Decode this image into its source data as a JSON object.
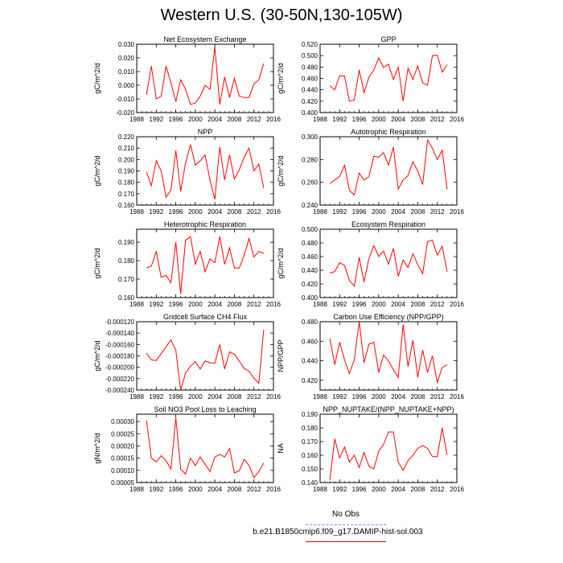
{
  "title": "Western U.S. (30-50N,130-105W)",
  "legend": {
    "obs_label": "No Obs",
    "obs_color": "#8080ff",
    "case_label": "b.e21.B1850cmip6.f09_g17.DAMIP-hist-sol.003",
    "case_color": "#ff0000"
  },
  "chart_data": [
    {
      "type": "line",
      "title": "Net Ecosystem Exchange",
      "ylabel": "gC/m^2/d",
      "xlim": [
        1988,
        2016
      ],
      "xticks": [
        "1988",
        "1992",
        "1996",
        "2000",
        "2004",
        "2008",
        "2012",
        "2016"
      ],
      "ylim": [
        -0.02,
        0.03
      ],
      "yticks": [
        "-0.020",
        "-0.010",
        "0.000",
        "0.010",
        "0.020",
        "0.030"
      ],
      "series": [
        {
          "x": [
            1990,
            1991,
            1992,
            1993,
            1994,
            1995,
            1996,
            1997,
            1998,
            1999,
            2000,
            2001,
            2002,
            2003,
            2004,
            2005,
            2006,
            2007,
            2008,
            2009,
            2010,
            2011,
            2012,
            2013,
            2014
          ],
          "values": [
            -0.007,
            0.014,
            -0.01,
            -0.008,
            0.014,
            0.002,
            -0.012,
            0.004,
            -0.003,
            -0.014,
            -0.013,
            -0.008,
            0.0,
            -0.003,
            0.028,
            -0.014,
            0.006,
            -0.009,
            0.005,
            -0.008,
            -0.009,
            -0.009,
            0.001,
            0.004,
            0.016
          ]
        }
      ]
    },
    {
      "type": "line",
      "title": "GPP",
      "ylabel": "gC/m^2/d",
      "xlim": [
        1988,
        2016
      ],
      "xticks": [
        "1988",
        "1992",
        "1996",
        "2000",
        "2004",
        "2008",
        "2012",
        "2016"
      ],
      "ylim": [
        0.4,
        0.52
      ],
      "yticks": [
        "0.400",
        "0.420",
        "0.440",
        "0.460",
        "0.480",
        "0.500",
        "0.520"
      ],
      "series": [
        {
          "x": [
            1990,
            1991,
            1992,
            1993,
            1994,
            1995,
            1996,
            1997,
            1998,
            1999,
            2000,
            2001,
            2002,
            2003,
            2004,
            2005,
            2006,
            2007,
            2008,
            2009,
            2010,
            2011,
            2012,
            2013,
            2014
          ],
          "values": [
            0.447,
            0.44,
            0.465,
            0.464,
            0.42,
            0.422,
            0.475,
            0.435,
            0.462,
            0.475,
            0.496,
            0.479,
            0.485,
            0.458,
            0.48,
            0.42,
            0.478,
            0.458,
            0.482,
            0.452,
            0.448,
            0.5,
            0.501,
            0.471,
            0.484
          ]
        }
      ]
    },
    {
      "type": "line",
      "title": "NPP",
      "ylabel": "gC/m^2/d",
      "xlim": [
        1988,
        2016
      ],
      "xticks": [
        "1988",
        "1992",
        "1996",
        "2000",
        "2004",
        "2008",
        "2012",
        "2016"
      ],
      "ylim": [
        0.16,
        0.22
      ],
      "yticks": [
        "0.160",
        "0.170",
        "0.180",
        "0.190",
        "0.200",
        "0.210",
        "0.220"
      ],
      "series": [
        {
          "x": [
            1990,
            1991,
            1992,
            1993,
            1994,
            1995,
            1996,
            1997,
            1998,
            1999,
            2000,
            2001,
            2002,
            2003,
            2004,
            2005,
            2006,
            2007,
            2008,
            2009,
            2010,
            2011,
            2012,
            2013,
            2014
          ],
          "values": [
            0.189,
            0.177,
            0.199,
            0.19,
            0.167,
            0.173,
            0.208,
            0.172,
            0.197,
            0.213,
            0.195,
            0.199,
            0.204,
            0.182,
            0.165,
            0.211,
            0.182,
            0.204,
            0.183,
            0.191,
            0.202,
            0.21,
            0.19,
            0.196,
            0.175
          ]
        }
      ]
    },
    {
      "type": "line",
      "title": "Autotrophic Respiration",
      "ylabel": "gC/m^2/d",
      "xlim": [
        1988,
        2016
      ],
      "xticks": [
        "1988",
        "1992",
        "1996",
        "2000",
        "2004",
        "2008",
        "2012",
        "2016"
      ],
      "ylim": [
        0.24,
        0.3
      ],
      "yticks": [
        "0.240",
        "0.260",
        "0.280",
        "0.300"
      ],
      "series": [
        {
          "x": [
            1990,
            1991,
            1992,
            1993,
            1994,
            1995,
            1996,
            1997,
            1998,
            1999,
            2000,
            2001,
            2002,
            2003,
            2004,
            2005,
            2006,
            2007,
            2008,
            2009,
            2010,
            2011,
            2012,
            2013,
            2014
          ],
          "values": [
            0.259,
            0.262,
            0.265,
            0.275,
            0.253,
            0.249,
            0.268,
            0.262,
            0.265,
            0.283,
            0.282,
            0.286,
            0.275,
            0.291,
            0.254,
            0.262,
            0.266,
            0.278,
            0.27,
            0.258,
            0.297,
            0.29,
            0.28,
            0.288,
            0.254
          ]
        }
      ]
    },
    {
      "type": "line",
      "title": "Heterotrophic Respiration",
      "ylabel": "gC/m^2/d",
      "xlim": [
        1988,
        2016
      ],
      "xticks": [
        "1988",
        "1992",
        "1996",
        "2000",
        "2004",
        "2008",
        "2012",
        "2016"
      ],
      "ylim": [
        0.16,
        0.197
      ],
      "yticks": [
        "0.160",
        "0.170",
        "0.180",
        "0.190"
      ],
      "series": [
        {
          "x": [
            1990,
            1991,
            1992,
            1993,
            1994,
            1995,
            1996,
            1997,
            1998,
            1999,
            2000,
            2001,
            2002,
            2003,
            2004,
            2005,
            2006,
            2007,
            2008,
            2009,
            2010,
            2011,
            2012,
            2013,
            2014
          ],
          "values": [
            0.176,
            0.177,
            0.185,
            0.171,
            0.172,
            0.168,
            0.19,
            0.162,
            0.191,
            0.193,
            0.178,
            0.185,
            0.174,
            0.181,
            0.179,
            0.193,
            0.178,
            0.187,
            0.176,
            0.176,
            0.183,
            0.192,
            0.182,
            0.185,
            0.184
          ]
        }
      ]
    },
    {
      "type": "line",
      "title": "Ecosystem Respiration",
      "ylabel": "gC/m^2/d",
      "xlim": [
        1988,
        2016
      ],
      "xticks": [
        "1988",
        "1992",
        "1996",
        "2000",
        "2004",
        "2008",
        "2012",
        "2016"
      ],
      "ylim": [
        0.4,
        0.5
      ],
      "yticks": [
        "0.400",
        "0.420",
        "0.440",
        "0.460",
        "0.480",
        "0.500"
      ],
      "series": [
        {
          "x": [
            1990,
            1991,
            1992,
            1993,
            1994,
            1995,
            1996,
            1997,
            1998,
            1999,
            2000,
            2001,
            2002,
            2003,
            2004,
            2005,
            2006,
            2007,
            2008,
            2009,
            2010,
            2011,
            2012,
            2013,
            2014
          ],
          "values": [
            0.436,
            0.438,
            0.451,
            0.447,
            0.425,
            0.417,
            0.459,
            0.423,
            0.457,
            0.476,
            0.46,
            0.468,
            0.449,
            0.472,
            0.431,
            0.455,
            0.444,
            0.464,
            0.448,
            0.435,
            0.482,
            0.484,
            0.462,
            0.475,
            0.438
          ]
        }
      ]
    },
    {
      "type": "line",
      "title": "Gridcell Surface CH4 Flux",
      "ylabel": "gC/m^2/d",
      "xlim": [
        1988,
        2016
      ],
      "xticks": [
        "1988",
        "1992",
        "1996",
        "2000",
        "2004",
        "2008",
        "2012",
        "2016"
      ],
      "ylim": [
        -0.00024,
        -0.00012
      ],
      "yticks": [
        "-0.000240",
        "-0.000220",
        "-0.000200",
        "-0.000180",
        "-0.000160",
        "-0.000140",
        "-0.000120"
      ],
      "series": [
        {
          "x": [
            1990,
            1991,
            1992,
            1993,
            1994,
            1995,
            1996,
            1997,
            1998,
            1999,
            2000,
            2001,
            2002,
            2003,
            2004,
            2005,
            2006,
            2007,
            2008,
            2009,
            2010,
            2011,
            2012,
            2013,
            2014
          ],
          "values": [
            -0.000175,
            -0.000187,
            -0.000188,
            -0.000176,
            -0.000164,
            -0.000152,
            -0.00017,
            -0.00024,
            -0.00021,
            -0.000198,
            -0.00019,
            -0.000203,
            -0.000189,
            -0.000192,
            -0.000193,
            -0.00016,
            -0.000203,
            -0.000173,
            -0.000177,
            -0.000189,
            -0.000202,
            -0.000207,
            -0.000219,
            -0.000228,
            -0.000134
          ]
        }
      ]
    },
    {
      "type": "line",
      "title": "Carbon Use Efficiency (NPP/GPP)",
      "ylabel": "NPP/GPP",
      "xlim": [
        1988,
        2016
      ],
      "xticks": [
        "1988",
        "1992",
        "1996",
        "2000",
        "2004",
        "2008",
        "2012",
        "2016"
      ],
      "ylim": [
        0.41,
        0.48
      ],
      "yticks": [
        "0.420",
        "0.440",
        "0.460",
        "0.480"
      ],
      "series": [
        {
          "x": [
            1990,
            1991,
            1992,
            1993,
            1994,
            1995,
            1996,
            1997,
            1998,
            1999,
            2000,
            2001,
            2002,
            2003,
            2004,
            2005,
            2006,
            2007,
            2008,
            2009,
            2010,
            2011,
            2012,
            2013,
            2014
          ],
          "values": [
            0.463,
            0.436,
            0.459,
            0.441,
            0.427,
            0.441,
            0.48,
            0.438,
            0.457,
            0.459,
            0.428,
            0.446,
            0.44,
            0.431,
            0.423,
            0.477,
            0.434,
            0.461,
            0.423,
            0.451,
            0.428,
            0.445,
            0.418,
            0.433,
            0.436
          ]
        }
      ]
    },
    {
      "type": "line",
      "title": "Soil NO3 Pool Loss to Leaching",
      "ylabel": "gN/m^2/d",
      "xlim": [
        1988,
        2016
      ],
      "xticks": [
        "1988",
        "1992",
        "1996",
        "2000",
        "2004",
        "2008",
        "2012",
        "2016"
      ],
      "ylim": [
        5e-05,
        0.00033
      ],
      "yticks": [
        "0.00005",
        "0.00010",
        "0.00015",
        "0.00020",
        "0.00025",
        "0.00030"
      ],
      "series": [
        {
          "x": [
            1990,
            1991,
            1992,
            1993,
            1994,
            1995,
            1996,
            1997,
            1998,
            1999,
            2000,
            2001,
            2002,
            2003,
            2004,
            2005,
            2006,
            2007,
            2008,
            2009,
            2010,
            2011,
            2012,
            2013,
            2014
          ],
          "values": [
            0.000305,
            0.00015,
            0.000135,
            0.00016,
            0.00014,
            0.000105,
            0.000315,
            0.000105,
            8.5e-05,
            0.00015,
            0.00012,
            0.000155,
            0.000125,
            9.5e-05,
            0.000155,
            0.000165,
            0.000155,
            0.00019,
            9e-05,
            9.8e-05,
            0.000145,
            0.00012,
            7e-05,
            9.5e-05,
            0.00013
          ]
        }
      ]
    },
    {
      "type": "line",
      "title": "NPP_NUPTAKE/(NPP_NUPTAKE+NPP)",
      "ylabel": "NA",
      "xlim": [
        1988,
        2016
      ],
      "xticks": [
        "1988",
        "1992",
        "1996",
        "2000",
        "2004",
        "2008",
        "2012",
        "2016"
      ],
      "ylim": [
        0.14,
        0.19
      ],
      "yticks": [
        "0.140",
        "0.150",
        "0.160",
        "0.170",
        "0.180",
        "0.190"
      ],
      "series": [
        {
          "x": [
            1990,
            1991,
            1992,
            1993,
            1994,
            1995,
            1996,
            1997,
            1998,
            1999,
            2000,
            2001,
            2002,
            2003,
            2004,
            2005,
            2006,
            2007,
            2008,
            2009,
            2010,
            2011,
            2012,
            2013,
            2014
          ],
          "values": [
            0.142,
            0.172,
            0.158,
            0.166,
            0.155,
            0.16,
            0.151,
            0.162,
            0.152,
            0.15,
            0.163,
            0.168,
            0.177,
            0.177,
            0.155,
            0.149,
            0.156,
            0.16,
            0.165,
            0.167,
            0.165,
            0.159,
            0.159,
            0.18,
            0.16
          ]
        }
      ]
    }
  ]
}
